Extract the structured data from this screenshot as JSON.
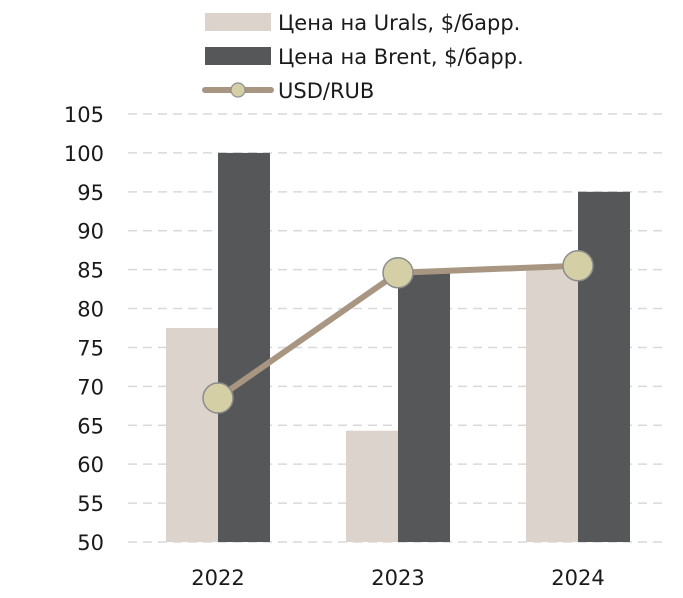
{
  "chart_data": {
    "type": "bar",
    "title": "",
    "xlabel": "",
    "ylabel": "",
    "categories": [
      "2022",
      "2023",
      "2024"
    ],
    "ylim": [
      50,
      105
    ],
    "yticks": [
      50,
      55,
      60,
      65,
      70,
      75,
      80,
      85,
      90,
      95,
      100,
      105
    ],
    "grid": "horizontal dashed",
    "legend_position": "top",
    "series": [
      {
        "name": "Цена на Urals, $/барр.",
        "type": "bar",
        "values": [
          77.5,
          64.3,
          85.0
        ],
        "color": "#ddd3cd"
      },
      {
        "name": "Цена на Brent, $/барр.",
        "type": "bar",
        "values": [
          100.0,
          85.0,
          95.0
        ],
        "color": "#555759"
      },
      {
        "name": "USD/RUB",
        "type": "line",
        "values": [
          68.5,
          84.6,
          85.5
        ],
        "color": "#a99682",
        "marker_color": "#d5cfa6"
      }
    ]
  }
}
